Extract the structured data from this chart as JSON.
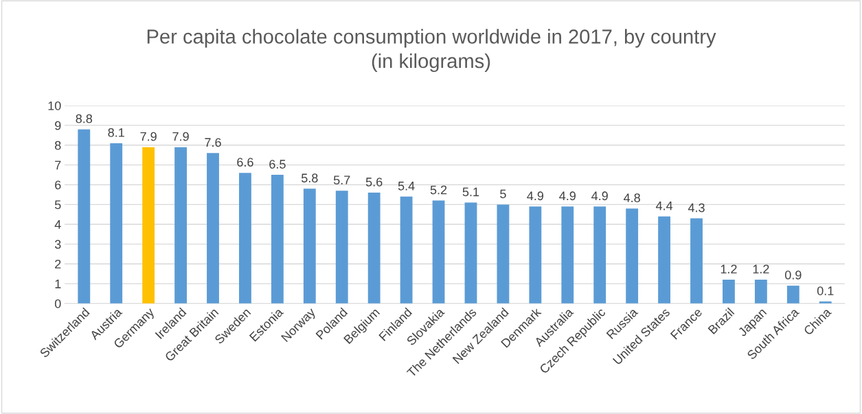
{
  "chart_data": {
    "type": "bar",
    "title": "Per capita chocolate consumption worldwide in 2017, by country\n(in kilograms)",
    "categories": [
      "Switzerland",
      "Austria",
      "Germany",
      "Ireland",
      "Great Britain",
      "Sweden",
      "Estonia",
      "Norway",
      "Poland",
      "Belgium",
      "Finland",
      "Slovakia",
      "The Netherlands",
      "New Zealand",
      "Denmark",
      "Australia",
      "Czech Republic",
      "Russia",
      "United States",
      "France",
      "Brazil",
      "Japan",
      "South Africa",
      "China"
    ],
    "values": [
      8.8,
      8.1,
      7.9,
      7.9,
      7.6,
      6.6,
      6.5,
      5.8,
      5.7,
      5.6,
      5.4,
      5.2,
      5.1,
      5,
      4.9,
      4.9,
      4.9,
      4.8,
      4.4,
      4.3,
      1.2,
      1.2,
      0.9,
      0.1
    ],
    "colors": [
      "#5b9bd5",
      "#5b9bd5",
      "#ffc000",
      "#5b9bd5",
      "#5b9bd5",
      "#5b9bd5",
      "#5b9bd5",
      "#5b9bd5",
      "#5b9bd5",
      "#5b9bd5",
      "#5b9bd5",
      "#5b9bd5",
      "#5b9bd5",
      "#5b9bd5",
      "#5b9bd5",
      "#5b9bd5",
      "#5b9bd5",
      "#5b9bd5",
      "#5b9bd5",
      "#5b9bd5",
      "#5b9bd5",
      "#5b9bd5",
      "#5b9bd5",
      "#5b9bd5"
    ],
    "ylim": [
      0,
      10
    ],
    "yticks": [
      0,
      1,
      2,
      3,
      4,
      5,
      6,
      7,
      8,
      9,
      10
    ],
    "grid": "y",
    "data_labels": true
  }
}
